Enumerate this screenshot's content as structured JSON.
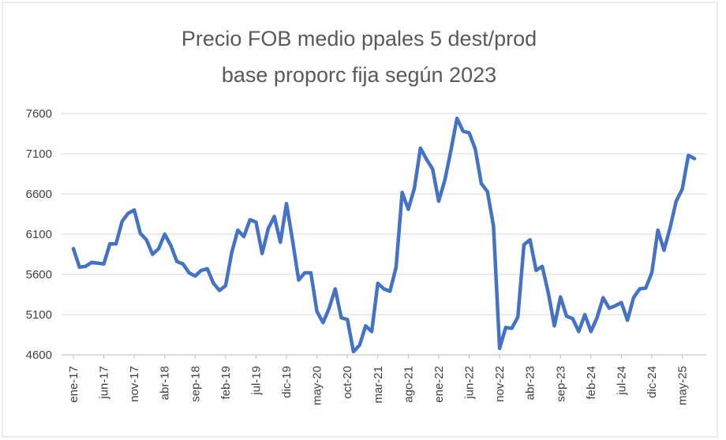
{
  "chart_data": {
    "type": "line",
    "title_line1": "Precio FOB medio ppales 5 dest/prod",
    "title_line2": "base proporc fija según 2023",
    "xlabel": "",
    "ylabel": "",
    "ylim": [
      4600,
      7600
    ],
    "yticks": [
      7600,
      7100,
      6600,
      6100,
      5600,
      5100,
      4600
    ],
    "xtick_labels": [
      "ene-17",
      "jun-17",
      "nov-17",
      "abr-18",
      "sep-18",
      "feb-19",
      "jul-19",
      "dic-19",
      "may-20",
      "oct-20",
      "mar-21",
      "ago-21",
      "ene-22",
      "jun-22",
      "nov-22",
      "abr-23",
      "sep-23",
      "feb-24",
      "jul-24",
      "dic-24",
      "may-25"
    ],
    "grid": true,
    "legend": "none",
    "line_color": "#4472c4",
    "start": "ene-17",
    "end": "jun-25",
    "series": [
      {
        "values": [
          5920,
          5690,
          5700,
          5750,
          5740,
          5730,
          5980,
          5980,
          6260,
          6360,
          6400,
          6110,
          6030,
          5850,
          5920,
          6100,
          5960,
          5760,
          5730,
          5620,
          5580,
          5650,
          5670,
          5490,
          5400,
          5460,
          5870,
          6150,
          6070,
          6280,
          6250,
          5860,
          6170,
          6320,
          6000,
          6480,
          6020,
          5530,
          5620,
          5620,
          5140,
          5000,
          5180,
          5420,
          5060,
          5040,
          4640,
          4720,
          4960,
          4890,
          5490,
          5420,
          5390,
          5690,
          6620,
          6410,
          6670,
          7170,
          7030,
          6910,
          6510,
          6770,
          7140,
          7540,
          7380,
          7360,
          7160,
          6730,
          6630,
          6200,
          4680,
          4940,
          4930,
          5070,
          5970,
          6030,
          5650,
          5700,
          5370,
          4960,
          5320,
          5080,
          5050,
          4890,
          5100,
          4890,
          5060,
          5310,
          5180,
          5210,
          5250,
          5030,
          5310,
          5420,
          5430,
          5620,
          6150,
          5900,
          6180,
          6510,
          6660,
          7080,
          7040
        ]
      }
    ]
  }
}
